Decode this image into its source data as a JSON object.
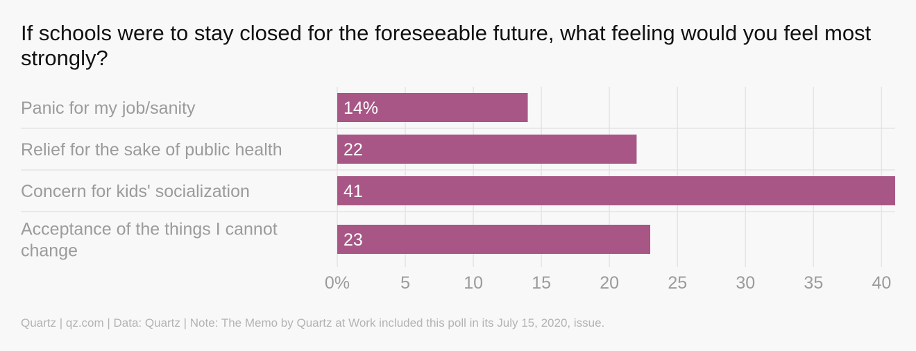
{
  "chart_data": {
    "type": "bar",
    "orientation": "horizontal",
    "title": "If schools were to stay closed for the foreseeable future, what feeling would you feel most strongly?",
    "categories": [
      [
        "Panic for my job/sanity"
      ],
      [
        "Relief for the sake of public health"
      ],
      [
        "Concern for kids' socialization"
      ],
      [
        "Acceptance of the things I cannot",
        "change"
      ]
    ],
    "values": [
      14,
      22,
      41,
      23
    ],
    "value_labels": [
      "14%",
      "22",
      "41",
      "23"
    ],
    "xlim": [
      0,
      41
    ],
    "xticks": [
      0,
      5,
      10,
      15,
      20,
      25,
      30,
      35,
      40
    ],
    "xtick_labels": [
      "0%",
      "5",
      "10",
      "15",
      "20",
      "25",
      "30",
      "35",
      "40"
    ],
    "grid": true,
    "bar_color": "#a85686"
  },
  "footer": "Quartz | qz.com | Data: Quartz | Note: The Memo by Quartz at Work included this poll in its July 15, 2020, issue."
}
